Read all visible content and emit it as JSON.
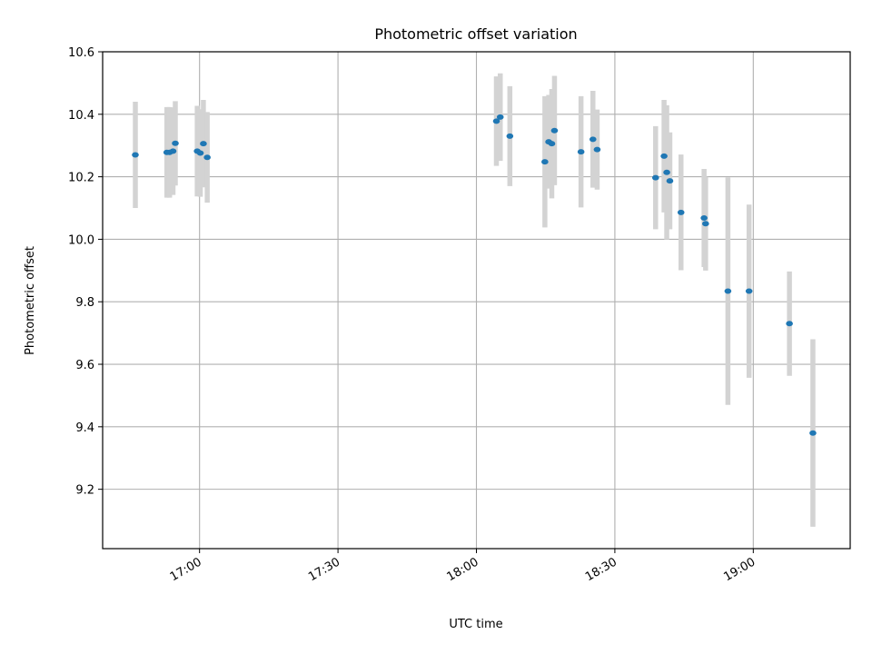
{
  "chart_data": {
    "type": "scatter",
    "title": "Photometric offset variation",
    "xlabel": "UTC time",
    "ylabel": "Photometric offset",
    "grid": true,
    "ylim": [
      9.01,
      10.6
    ],
    "xlim": [
      "16:39",
      "19:21"
    ],
    "yticks": [
      "9.2",
      "9.4",
      "9.6",
      "9.8",
      "10.0",
      "10.2",
      "10.4",
      "10.6"
    ],
    "xticks": [
      "17:00",
      "17:30",
      "18:00",
      "18:30",
      "19:00"
    ],
    "colors": {
      "point": "#1f77b4",
      "errorbar": "#d3d3d3"
    },
    "series": [
      {
        "x": [
          "16:46:05",
          "16:52:55",
          "16:53:30",
          "16:54:15",
          "16:54:45",
          "16:59:30",
          "17:00:10",
          "17:00:50",
          "17:01:40",
          "18:04:20",
          "18:05:10",
          "18:07:15",
          "18:14:50",
          "18:15:40",
          "18:16:20",
          "18:16:55",
          "18:22:40",
          "18:25:15",
          "18:26:10",
          "18:38:50",
          "18:40:40",
          "18:41:15",
          "18:41:55",
          "18:44:20",
          "18:49:20",
          "18:49:40",
          "18:54:30",
          "18:59:05",
          "19:07:50",
          "19:12:55"
        ],
        "y": [
          10.27,
          10.278,
          10.278,
          10.282,
          10.307,
          10.282,
          10.276,
          10.306,
          10.262,
          10.378,
          10.391,
          10.33,
          10.248,
          10.312,
          10.306,
          10.348,
          10.28,
          10.32,
          10.287,
          10.197,
          10.266,
          10.214,
          10.187,
          10.086,
          10.068,
          10.05,
          9.834,
          9.834,
          9.73,
          9.38
        ],
        "yerr": [
          0.17,
          0.145,
          0.145,
          0.14,
          0.135,
          0.145,
          0.14,
          0.14,
          0.145,
          0.143,
          0.14,
          0.16,
          0.21,
          0.15,
          0.175,
          0.175,
          0.178,
          0.155,
          0.128,
          0.165,
          0.18,
          0.215,
          0.155,
          0.185,
          0.157,
          0.15,
          0.364,
          0.277,
          0.167,
          0.3
        ]
      }
    ]
  }
}
